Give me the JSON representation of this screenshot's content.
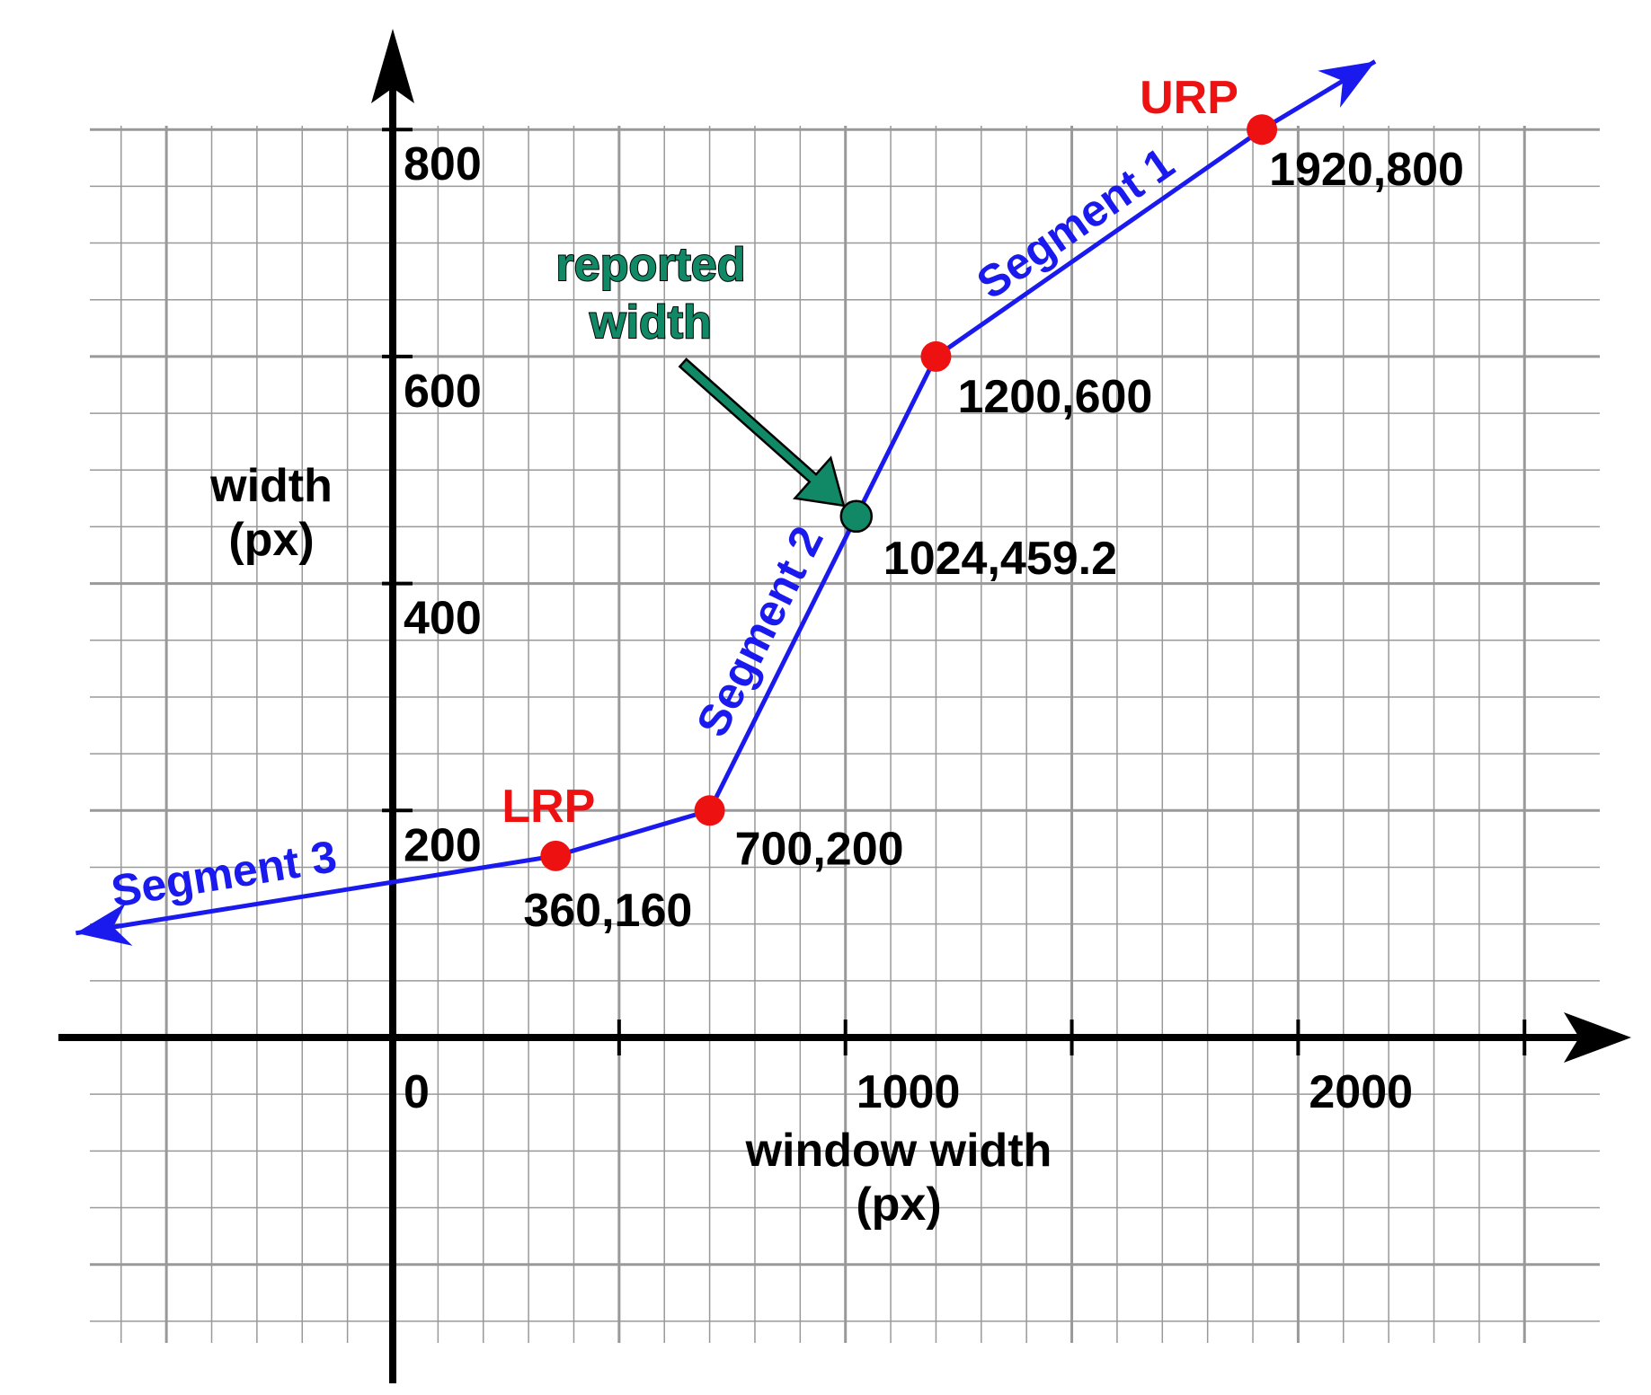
{
  "colors": {
    "line": "#1a1aee",
    "ref_point": "#ee1111",
    "reported_point": "#118866",
    "grid": "#999999",
    "axis": "#000000"
  },
  "chart_data": {
    "type": "line",
    "xlabel": "window width\n(px)",
    "ylabel": "width\n(px)",
    "x_ticks": [
      0,
      1000,
      2000
    ],
    "y_ticks": [
      200,
      400,
      600,
      800
    ],
    "x_tick_labels": [
      "0",
      "1000",
      "2000"
    ],
    "y_tick_labels": [
      "200",
      "400",
      "600",
      "800"
    ],
    "xlim": [
      -700,
      2500
    ],
    "ylim": [
      -300,
      870
    ],
    "grid": true,
    "series": [
      {
        "values": [
          {
            "x": -700,
            "y": 92
          },
          {
            "x": 360,
            "y": 160
          },
          {
            "x": 700,
            "y": 200
          },
          {
            "x": 1200,
            "y": 600
          },
          {
            "x": 1920,
            "y": 800
          },
          {
            "x": 2170,
            "y": 860
          }
        ]
      }
    ],
    "points": [
      {
        "x": 360,
        "y": 160,
        "label": "360,160",
        "kind": "ref"
      },
      {
        "x": 700,
        "y": 200,
        "label": "700,200",
        "kind": "break"
      },
      {
        "x": 1200,
        "y": 600,
        "label": "1200,600",
        "kind": "break"
      },
      {
        "x": 1920,
        "y": 800,
        "label": "1920,800",
        "kind": "ref"
      },
      {
        "x": 1024,
        "y": 459.2,
        "label": "1024,459.2",
        "kind": "reported"
      }
    ],
    "reference_labels": [
      {
        "text": "LRP",
        "x": 360,
        "y": 160
      },
      {
        "text": "URP",
        "x": 1920,
        "y": 800
      }
    ],
    "segment_labels": [
      "Segment 1",
      "Segment 2",
      "Segment 3"
    ],
    "annotations": [
      {
        "text": "reported\nwidth"
      }
    ]
  }
}
